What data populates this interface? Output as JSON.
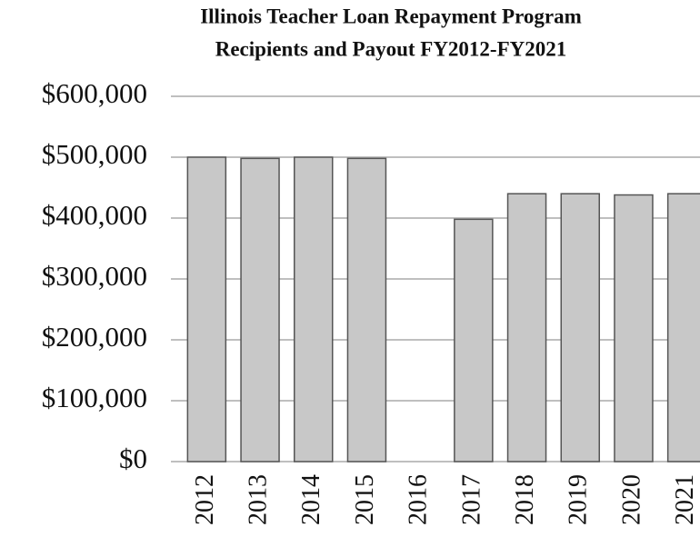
{
  "chart_data": {
    "type": "bar",
    "title": "Illinois Teacher Loan Repayment Program",
    "subtitle": "Recipients and Payout FY2012-FY2021",
    "categories": [
      "2012",
      "2013",
      "2014",
      "2015",
      "2016",
      "2017",
      "2018",
      "2019",
      "2020",
      "2021"
    ],
    "values": [
      500000,
      498000,
      500000,
      498000,
      0,
      398000,
      440000,
      440000,
      438000,
      440000
    ],
    "color": "#c8c8c8",
    "ylim": [
      0,
      600000
    ],
    "yticks": [
      {
        "value": 0,
        "label": "$0"
      },
      {
        "value": 100000,
        "label": "$100,000"
      },
      {
        "value": 200000,
        "label": "$200,000"
      },
      {
        "value": 300000,
        "label": "$300,000"
      },
      {
        "value": 400000,
        "label": "$400,000"
      },
      {
        "value": 500000,
        "label": "$500,000"
      },
      {
        "value": 600000,
        "label": "$600,000"
      }
    ],
    "grid": true
  }
}
